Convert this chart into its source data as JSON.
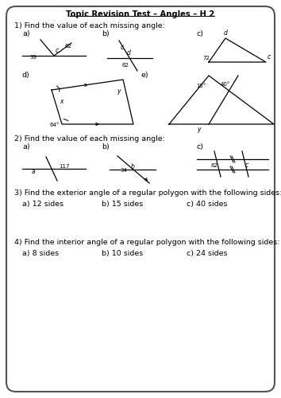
{
  "title": "Topic Revision Test – Angles – H 2",
  "bg_color": "#ffffff",
  "q1_label": "1) Find the value of each missing angle:",
  "q2_label": "2) Find the value of each missing angle:",
  "q3_label": "3) Find the exterior angle of a regular polygon with the following sides:",
  "q3_a": "a) 12 sides",
  "q3_b": "b) 15 sides",
  "q3_c": "c) 40 sides",
  "q4_label": "4) Find the interior angle of a regular polygon with the following sides:",
  "q4_a": "a) 8 sides",
  "q4_b": "b) 10 sides",
  "q4_c": "c) 24 sides"
}
